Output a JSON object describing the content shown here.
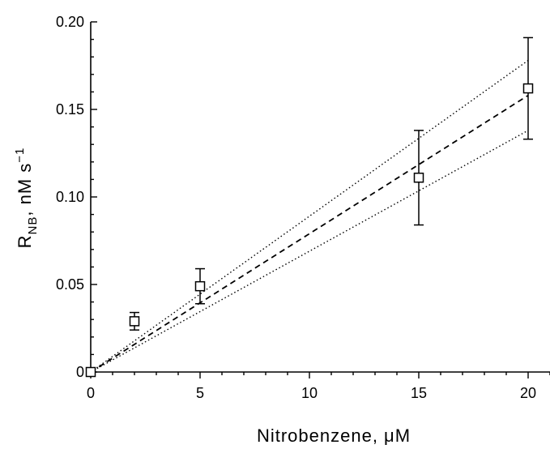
{
  "chart_data": {
    "type": "scatter",
    "title": "",
    "xlabel": "Nitrobenzene, μM",
    "ylabel": {
      "base": "R",
      "subscript": "NB",
      "unit": ", nM s",
      "superscript": "−1"
    },
    "xlim": [
      0,
      21
    ],
    "ylim": [
      0,
      0.2
    ],
    "x_ticks": [
      0,
      5,
      10,
      15,
      20
    ],
    "x_tick_labels": [
      "0",
      "5",
      "10",
      "15",
      "20"
    ],
    "y_ticks": [
      0,
      0.05,
      0.1,
      0.15,
      0.2
    ],
    "y_tick_labels": [
      "0",
      "0.05",
      "0.10",
      "0.15",
      "0.20"
    ],
    "grid": false,
    "series": [
      {
        "marker": "open-square",
        "x": [
          0,
          2,
          5,
          15,
          20
        ],
        "y": [
          0,
          0.029,
          0.049,
          0.111,
          0.162
        ],
        "error": [
          0,
          0.005,
          0.01,
          0.027,
          0.029
        ]
      }
    ],
    "fit_lines": [
      {
        "style": "dashed",
        "slope": 0.0079
      },
      {
        "style": "dotted",
        "slope": 0.0089
      },
      {
        "style": "dotted",
        "slope": 0.0069
      }
    ]
  }
}
